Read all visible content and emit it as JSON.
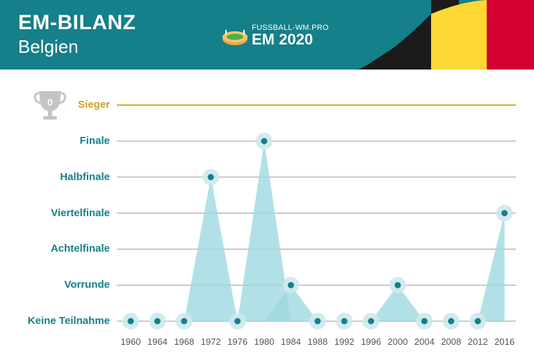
{
  "header": {
    "title": "EM-BILANZ",
    "subtitle": "Belgien",
    "brand_site": "FUSSBALL-WM.PRO",
    "brand_event": "EM 2020",
    "trophy_number": "0",
    "flag_colors": [
      "#1b1b1b",
      "#fdd835",
      "#d50032"
    ]
  },
  "colors": {
    "header_bg": "#157f8a",
    "label": "#157f8a",
    "winner_label": "#c9a227",
    "winner_line": "#d6a81c",
    "grid": "#9a9a9a",
    "area": "#9ed9e0",
    "point": "#157f8a",
    "point_halo": "#cde9ec"
  },
  "chart_data": {
    "type": "area",
    "title": "",
    "xlabel": "",
    "ylabel": "",
    "levels": [
      "Keine Teilnahme",
      "Vorrunde",
      "Achtelfinale",
      "Viertelfinale",
      "Halbfinale",
      "Finale",
      "Sieger"
    ],
    "x": [
      "1960",
      "1964",
      "1968",
      "1972",
      "1976",
      "1980",
      "1984",
      "1988",
      "1992",
      "1996",
      "2000",
      "2004",
      "2008",
      "2012",
      "2016"
    ],
    "series": [
      {
        "values": [
          "Keine Teilnahme",
          "Keine Teilnahme",
          "Keine Teilnahme",
          "Halbfinale",
          "Keine Teilnahme",
          "Finale",
          "Vorrunde",
          "Keine Teilnahme",
          "Keine Teilnahme",
          "Keine Teilnahme",
          "Vorrunde",
          "Keine Teilnahme",
          "Keine Teilnahme",
          "Keine Teilnahme",
          "Viertelfinale"
        ]
      }
    ],
    "grid": true,
    "legend": "none"
  }
}
